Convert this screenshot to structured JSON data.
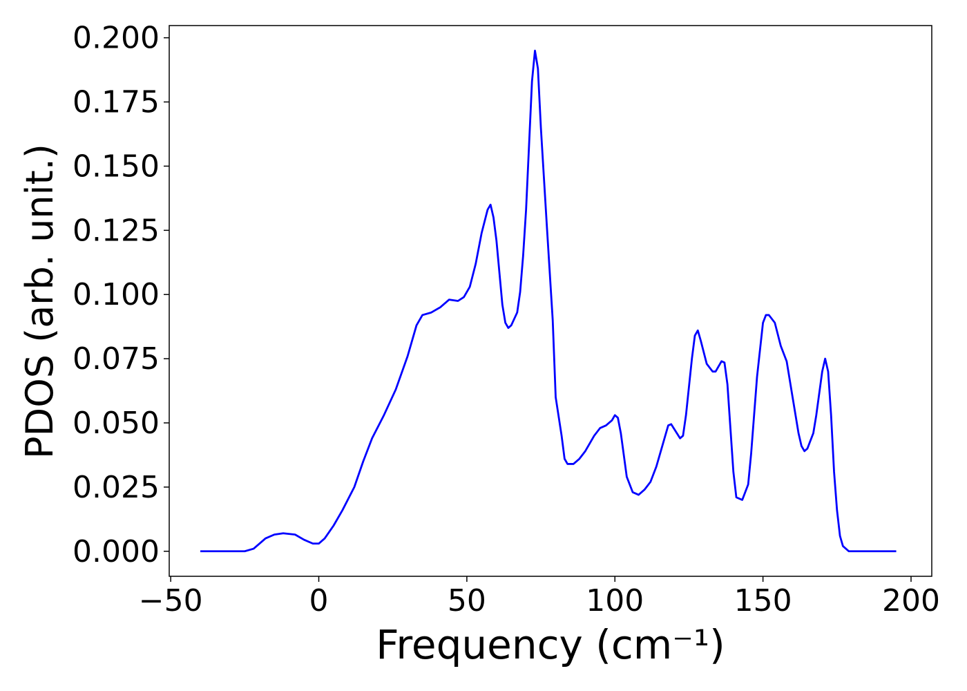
{
  "chart_data": {
    "type": "line",
    "xlabel": "Frequency (cm⁻¹)",
    "ylabel": "PDOS (arb. unit.)",
    "x": [
      -40,
      -30,
      -25,
      -22,
      -18,
      -15,
      -12,
      -8,
      -5,
      -2,
      0,
      2,
      5,
      8,
      12,
      15,
      18,
      22,
      26,
      30,
      33,
      35,
      38,
      41,
      44,
      47,
      49,
      51,
      53,
      55,
      57,
      58,
      59,
      60,
      62,
      63,
      64,
      65,
      67,
      68,
      69,
      70,
      71,
      72,
      73,
      74,
      75,
      77,
      79,
      80,
      82,
      83,
      84,
      86,
      88,
      90,
      93,
      95,
      97,
      99,
      100,
      101,
      102,
      104,
      106,
      108,
      110,
      112,
      114,
      116,
      118,
      119,
      122,
      123,
      124,
      126,
      127,
      128,
      129,
      131,
      133,
      134,
      136,
      137,
      138,
      140,
      141,
      143,
      145,
      146,
      148,
      150,
      151,
      152,
      154,
      156,
      158,
      160,
      162,
      163,
      164,
      165,
      167,
      168,
      170,
      171,
      172,
      173,
      174,
      175,
      176,
      177,
      179,
      195
    ],
    "series": [
      {
        "name": "PDOS",
        "color": "#0000ff",
        "values": [
          0,
          0,
          0,
          0.001,
          0.005,
          0.0065,
          0.007,
          0.0065,
          0.0045,
          0.003,
          0.003,
          0.005,
          0.01,
          0.016,
          0.025,
          0.035,
          0.044,
          0.053,
          0.063,
          0.076,
          0.088,
          0.092,
          0.093,
          0.095,
          0.098,
          0.0975,
          0.099,
          0.103,
          0.112,
          0.124,
          0.133,
          0.135,
          0.13,
          0.121,
          0.096,
          0.089,
          0.087,
          0.088,
          0.093,
          0.101,
          0.115,
          0.133,
          0.158,
          0.183,
          0.195,
          0.188,
          0.165,
          0.127,
          0.09,
          0.06,
          0.045,
          0.036,
          0.034,
          0.034,
          0.036,
          0.039,
          0.045,
          0.048,
          0.049,
          0.051,
          0.053,
          0.052,
          0.046,
          0.029,
          0.023,
          0.022,
          0.024,
          0.027,
          0.033,
          0.041,
          0.049,
          0.0495,
          0.044,
          0.045,
          0.053,
          0.075,
          0.084,
          0.086,
          0.082,
          0.073,
          0.07,
          0.07,
          0.074,
          0.0735,
          0.065,
          0.031,
          0.021,
          0.02,
          0.026,
          0.038,
          0.068,
          0.089,
          0.092,
          0.092,
          0.089,
          0.08,
          0.074,
          0.06,
          0.046,
          0.041,
          0.039,
          0.04,
          0.046,
          0.053,
          0.07,
          0.075,
          0.07,
          0.053,
          0.031,
          0.016,
          0.006,
          0.002,
          0,
          0
        ]
      }
    ],
    "xlim": [
      -50.5,
      207
    ],
    "ylim": [
      -0.00975,
      0.20475
    ],
    "xticks": [
      {
        "value": -50,
        "label": "−50"
      },
      0,
      50,
      100,
      150,
      200
    ],
    "yticks": [
      {
        "value": 0,
        "label": "0.000"
      },
      {
        "value": 0.025,
        "label": "0.025"
      },
      {
        "value": 0.05,
        "label": "0.050"
      },
      {
        "value": 0.075,
        "label": "0.075"
      },
      {
        "value": 0.1,
        "label": "0.100"
      },
      {
        "value": 0.125,
        "label": "0.125"
      },
      {
        "value": 0.15,
        "label": "0.150"
      },
      {
        "value": 0.175,
        "label": "0.175"
      },
      {
        "value": 0.2,
        "label": "0.200"
      }
    ],
    "grid": false
  }
}
